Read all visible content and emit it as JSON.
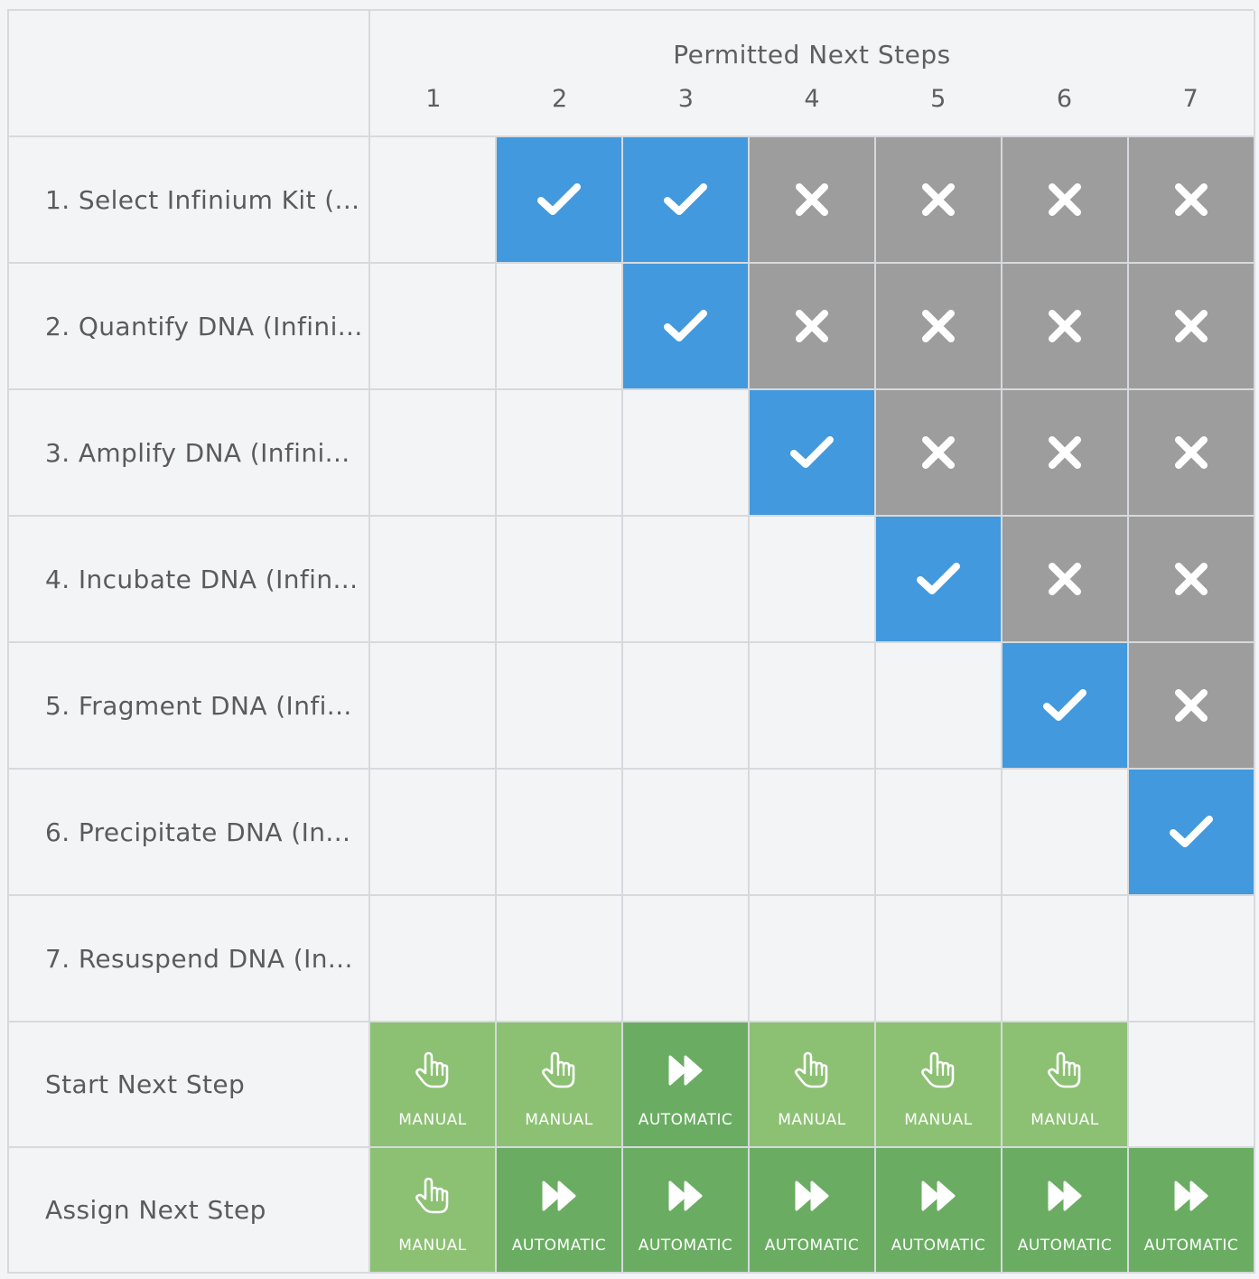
{
  "header": {
    "title": "Permitted Next Steps",
    "columns": [
      "1",
      "2",
      "3",
      "4",
      "5",
      "6",
      "7"
    ]
  },
  "rows": [
    {
      "label": "1. Select Infinium Kit (...",
      "cells": [
        "empty",
        "allowed",
        "allowed",
        "denied",
        "denied",
        "denied",
        "denied"
      ]
    },
    {
      "label": "2. Quantify DNA (Infini...",
      "cells": [
        "empty",
        "empty",
        "allowed",
        "denied",
        "denied",
        "denied",
        "denied"
      ]
    },
    {
      "label": "3. Amplify DNA (Infini...",
      "cells": [
        "empty",
        "empty",
        "empty",
        "allowed",
        "denied",
        "denied",
        "denied"
      ]
    },
    {
      "label": "4. Incubate DNA (Infin...",
      "cells": [
        "empty",
        "empty",
        "empty",
        "empty",
        "allowed",
        "denied",
        "denied"
      ]
    },
    {
      "label": "5. Fragment DNA (Infi...",
      "cells": [
        "empty",
        "empty",
        "empty",
        "empty",
        "empty",
        "allowed",
        "denied"
      ]
    },
    {
      "label": "6. Precipitate DNA (In...",
      "cells": [
        "empty",
        "empty",
        "empty",
        "empty",
        "empty",
        "empty",
        "allowed"
      ]
    },
    {
      "label": "7. Resuspend DNA (In...",
      "cells": [
        "empty",
        "empty",
        "empty",
        "empty",
        "empty",
        "empty",
        "empty"
      ]
    }
  ],
  "start_next_step": {
    "label": "Start Next Step",
    "modes": [
      "MANUAL",
      "MANUAL",
      "AUTOMATIC",
      "MANUAL",
      "MANUAL",
      "MANUAL",
      ""
    ]
  },
  "assign_next_step": {
    "label": "Assign Next Step",
    "modes": [
      "MANUAL",
      "AUTOMATIC",
      "AUTOMATIC",
      "AUTOMATIC",
      "AUTOMATIC",
      "AUTOMATIC",
      "AUTOMATIC"
    ]
  },
  "colors": {
    "allowed": "#4299dd",
    "denied": "#9d9d9d",
    "manual": "#8cc173",
    "automatic": "#6aad62"
  },
  "icons": {
    "allowed": "check-icon",
    "denied": "x-icon",
    "manual": "hand-pointer-icon",
    "automatic": "fast-forward-icon"
  }
}
